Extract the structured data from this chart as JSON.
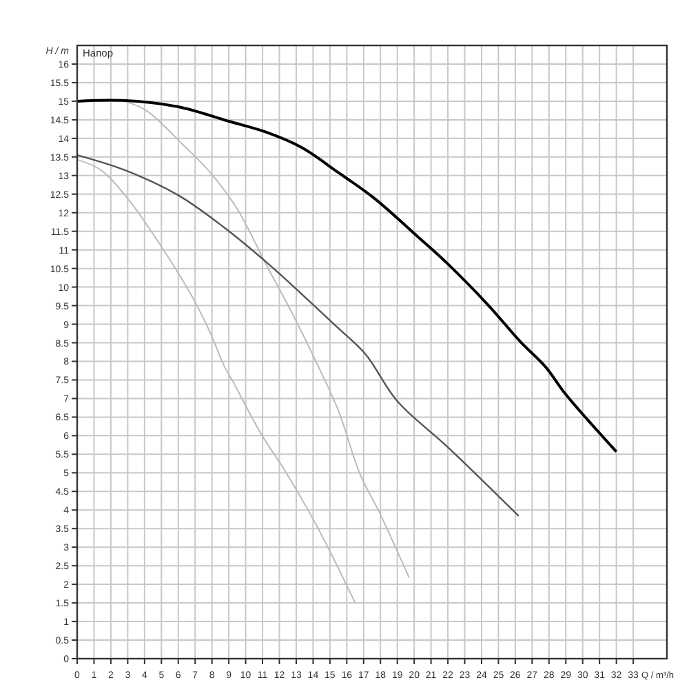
{
  "chart_data": {
    "type": "line",
    "title": "Напор",
    "xlabel": "Q / m³/h",
    "ylabel": "H / m",
    "xlim": [
      0,
      35
    ],
    "ylim": [
      0,
      16.5
    ],
    "xticks": [
      0,
      1,
      2,
      3,
      4,
      5,
      6,
      7,
      8,
      9,
      10,
      11,
      12,
      13,
      14,
      15,
      16,
      17,
      18,
      19,
      20,
      21,
      22,
      23,
      24,
      25,
      26,
      27,
      28,
      29,
      30,
      31,
      32,
      33
    ],
    "yticks": [
      0,
      0.5,
      1,
      1.5,
      2,
      2.5,
      3,
      3.5,
      4,
      4.5,
      5,
      5.5,
      6,
      6.5,
      7,
      7.5,
      8,
      8.5,
      9,
      9.5,
      10,
      10.5,
      11,
      11.5,
      12,
      12.5,
      13,
      13.5,
      14,
      14.5,
      15,
      15.5,
      16
    ],
    "grid": true,
    "marker": "none",
    "line_style": "solid",
    "series": [
      {
        "color": "#bbbbbb",
        "x": [
          2.8,
          4.1,
          6.3,
          7.9,
          9.5,
          11.2,
          12.8,
          14.4,
          15.5,
          16.8,
          17.9,
          19.7
        ],
        "values": [
          15.0,
          14.75,
          13.82,
          13.08,
          12.1,
          10.62,
          9.26,
          7.78,
          6.68,
          4.95,
          3.97,
          2.18
        ]
      },
      {
        "color": "#bbbbbb",
        "x": [
          0,
          1.4,
          3.05,
          4.95,
          6.8,
          7.9,
          8.7,
          9.3,
          10.9,
          12.3,
          13.9,
          14.9,
          16.5
        ],
        "values": [
          13.43,
          13.15,
          12.35,
          11.12,
          9.76,
          8.77,
          7.9,
          7.41,
          6.06,
          5.08,
          3.84,
          2.98,
          1.5
        ]
      },
      {
        "color": "#555555",
        "x": [
          0,
          2.8,
          6,
          8.7,
          11.2,
          13.3,
          15.5,
          17.1,
          19,
          22,
          26.2
        ],
        "values": [
          13.55,
          13.15,
          12.47,
          11.61,
          10.68,
          9.82,
          8.89,
          8.2,
          6.93,
          5.69,
          3.84
        ]
      },
      {
        "color": "#000000",
        "x": [
          0,
          2.7,
          6,
          9,
          11.2,
          13.3,
          15.5,
          17.6,
          20.2,
          22,
          24.4,
          26.3,
          27.8,
          29,
          32
        ],
        "values": [
          15.0,
          15.02,
          14.85,
          14.46,
          14.17,
          13.76,
          13.08,
          12.4,
          11.36,
          10.62,
          9.51,
          8.53,
          7.85,
          7.11,
          5.57
        ]
      }
    ]
  }
}
